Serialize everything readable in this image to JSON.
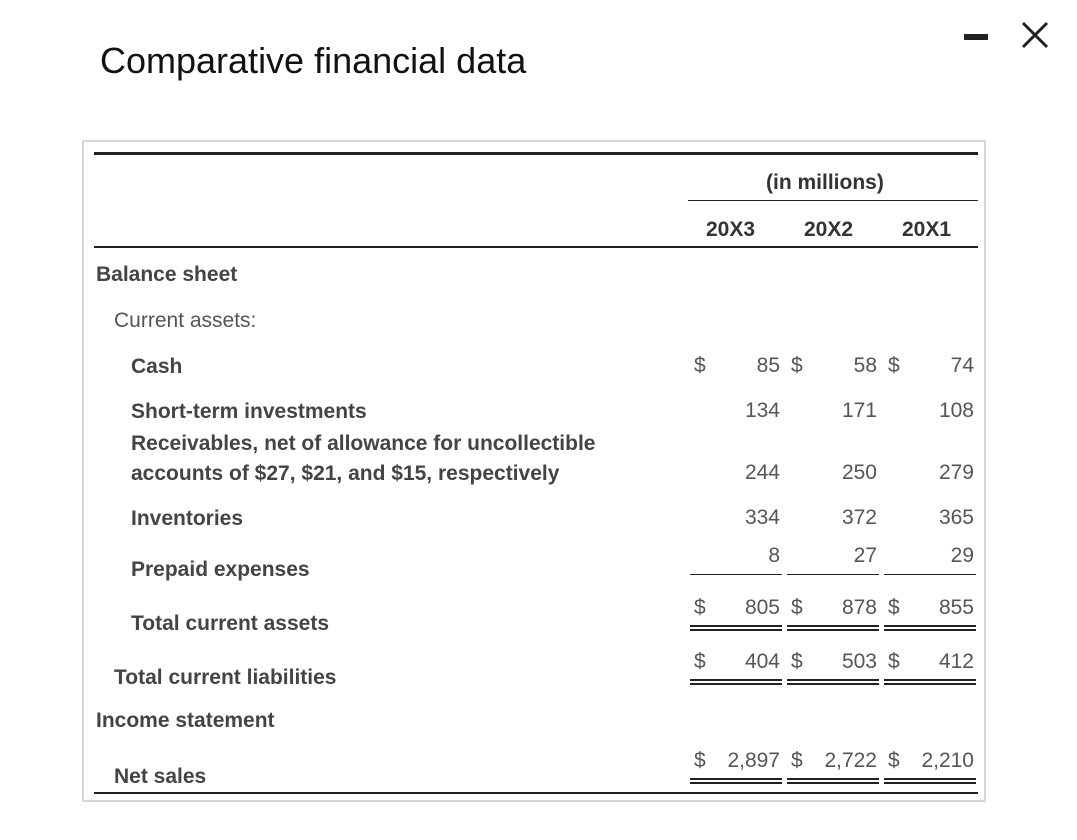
{
  "window": {
    "title": "Comparative financial data"
  },
  "table": {
    "unit_header": "(in millions)",
    "years": [
      "20X3",
      "20X2",
      "20X1"
    ],
    "sections": {
      "balance_sheet": "Balance sheet",
      "current_assets": "Current assets:",
      "income_statement": "Income statement"
    },
    "currency": "$",
    "rows": {
      "cash": {
        "label": "Cash",
        "values": [
          "85",
          "58",
          "74"
        ]
      },
      "short_term": {
        "label": "Short-term investments",
        "values": [
          "134",
          "171",
          "108"
        ]
      },
      "receivables": {
        "label_line1": "Receivables, net of allowance for uncollectible",
        "label_line2": "accounts of $27, $21, and $15, respectively",
        "values": [
          "244",
          "250",
          "279"
        ]
      },
      "inventories": {
        "label": "Inventories",
        "values": [
          "334",
          "372",
          "365"
        ]
      },
      "prepaid": {
        "label": "Prepaid expenses",
        "values": [
          "8",
          "27",
          "29"
        ]
      },
      "total_current_assets": {
        "label": "Total current assets",
        "values": [
          "805",
          "878",
          "855"
        ]
      },
      "total_current_liabilities": {
        "label": "Total current liabilities",
        "values": [
          "404",
          "503",
          "412"
        ]
      },
      "net_sales": {
        "label": "Net sales",
        "values": [
          "2,897",
          "2,722",
          "2,210"
        ]
      }
    }
  }
}
